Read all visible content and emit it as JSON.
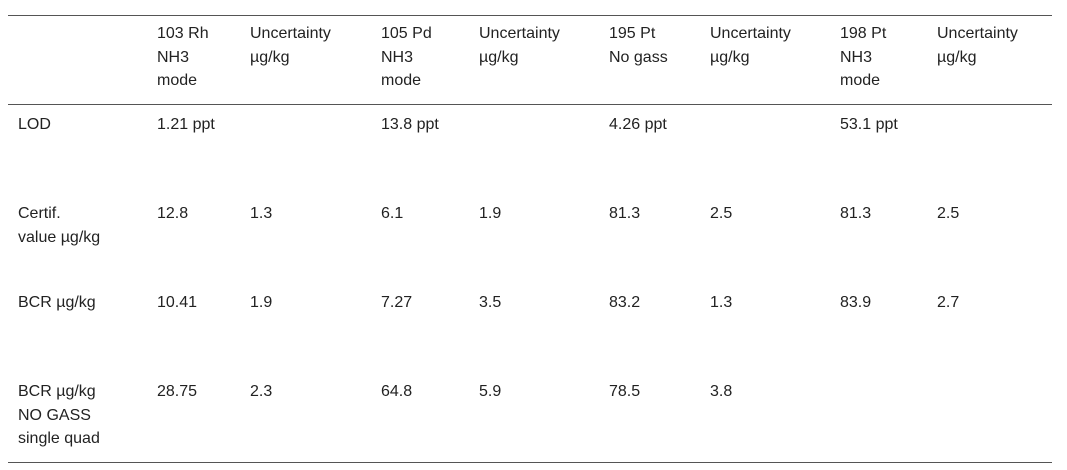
{
  "table": {
    "header": [
      null,
      [
        "103 Rh",
        "NH3",
        "mode"
      ],
      [
        "Uncertainty",
        "µg/kg"
      ],
      [
        "105 Pd",
        "NH3",
        "mode"
      ],
      [
        "Uncertainty",
        "µg/kg"
      ],
      [
        "195 Pt",
        "No gass"
      ],
      [
        "Uncertainty",
        "µg/kg"
      ],
      [
        "198 Pt",
        "NH3",
        "mode"
      ],
      [
        "Uncertainty",
        "µg/kg"
      ]
    ],
    "rows": [
      [
        [
          "LOD"
        ],
        "1.21 ppt",
        null,
        "13.8 ppt",
        null,
        "4.26 ppt",
        null,
        "53.1 ppt",
        null
      ],
      [
        [
          "Certif.",
          "value µg/kg"
        ],
        "12.8",
        "1.3",
        "6.1",
        "1.9",
        "81.3",
        "2.5",
        "81.3",
        "2.5"
      ],
      [
        [
          "BCR µg/kg"
        ],
        "10.41",
        "1.9",
        "7.27",
        "3.5",
        "83.2",
        "1.3",
        "83.9",
        "2.7"
      ],
      [
        [
          "BCR µg/kg",
          "NO GASS",
          "single quad"
        ],
        "28.75",
        "2.3",
        "64.8",
        "5.9",
        "78.5",
        "3.8",
        null,
        null
      ]
    ]
  }
}
